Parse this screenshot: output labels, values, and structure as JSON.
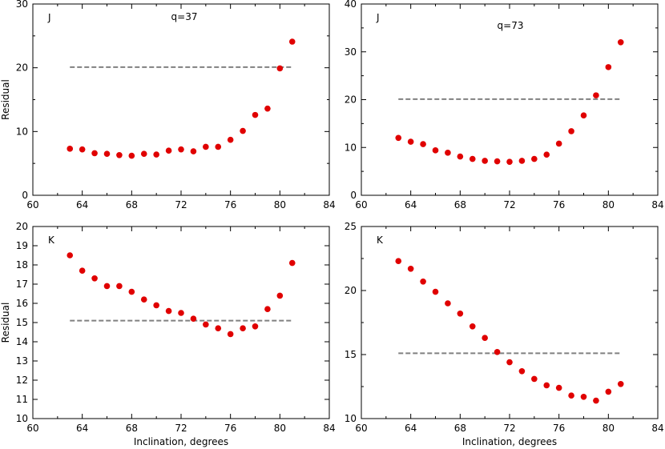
{
  "chart_data": [
    {
      "type": "scatter",
      "panel_label": "J",
      "annotation": "q=37",
      "xlabel": "",
      "ylabel": "Residual",
      "xlim": [
        60,
        84
      ],
      "ylim": [
        0,
        30
      ],
      "xticks": [
        60,
        64,
        68,
        72,
        76,
        80,
        84
      ],
      "yticks": [
        0,
        10,
        20,
        30
      ],
      "threshold": 20.1,
      "threshold_x": [
        63,
        81
      ],
      "point_color": "#e00000",
      "threshold_color": "#808080",
      "points": {
        "x": [
          63,
          64,
          65,
          66,
          67,
          68,
          69,
          70,
          71,
          72,
          73,
          74,
          75,
          76,
          77,
          78,
          79,
          80,
          81
        ],
        "y": [
          7.3,
          7.2,
          6.6,
          6.5,
          6.3,
          6.2,
          6.5,
          6.4,
          7.0,
          7.2,
          6.9,
          7.6,
          7.6,
          8.7,
          10.1,
          12.6,
          13.6,
          19.9,
          24.1
        ]
      }
    },
    {
      "type": "scatter",
      "panel_label": "J",
      "annotation": "q=73",
      "xlabel": "",
      "ylabel": "",
      "xlim": [
        60,
        84
      ],
      "ylim": [
        0,
        40
      ],
      "xticks": [
        60,
        64,
        68,
        72,
        76,
        80,
        84
      ],
      "yticks": [
        0,
        10,
        20,
        30,
        40
      ],
      "threshold": 20.1,
      "threshold_x": [
        63,
        81
      ],
      "point_color": "#e00000",
      "threshold_color": "#808080",
      "points": {
        "x": [
          63,
          64,
          65,
          66,
          67,
          68,
          69,
          70,
          71,
          72,
          73,
          74,
          75,
          76,
          77,
          78,
          79,
          80,
          81
        ],
        "y": [
          12.0,
          11.2,
          10.7,
          9.4,
          8.9,
          8.1,
          7.6,
          7.2,
          7.1,
          7.0,
          7.2,
          7.6,
          8.5,
          10.8,
          13.4,
          16.7,
          20.9,
          26.8,
          32.0
        ]
      }
    },
    {
      "type": "scatter",
      "panel_label": "K",
      "annotation": "",
      "xlabel": "Inclination, degrees",
      "ylabel": "Residual",
      "xlim": [
        60,
        84
      ],
      "ylim": [
        10,
        20
      ],
      "xticks": [
        60,
        64,
        68,
        72,
        76,
        80,
        84
      ],
      "yticks": [
        10,
        11,
        12,
        13,
        14,
        15,
        16,
        17,
        18,
        19,
        20
      ],
      "threshold": 15.1,
      "threshold_x": [
        63,
        81
      ],
      "point_color": "#e00000",
      "threshold_color": "#808080",
      "points": {
        "x": [
          63,
          64,
          65,
          66,
          67,
          68,
          69,
          70,
          71,
          72,
          73,
          74,
          75,
          76,
          77,
          78,
          79,
          80,
          81
        ],
        "y": [
          18.5,
          17.7,
          17.3,
          16.9,
          16.9,
          16.6,
          16.2,
          15.9,
          15.6,
          15.5,
          15.2,
          14.9,
          14.7,
          14.4,
          14.7,
          14.8,
          15.7,
          16.4,
          18.1
        ]
      }
    },
    {
      "type": "scatter",
      "panel_label": "K",
      "annotation": "",
      "xlabel": "Inclination, degrees",
      "ylabel": "",
      "xlim": [
        60,
        84
      ],
      "ylim": [
        10,
        25
      ],
      "xticks": [
        60,
        64,
        68,
        72,
        76,
        80,
        84
      ],
      "yticks": [
        10,
        15,
        20,
        25
      ],
      "threshold": 15.1,
      "threshold_x": [
        63,
        81
      ],
      "point_color": "#e00000",
      "threshold_color": "#808080",
      "points": {
        "x": [
          63,
          64,
          65,
          66,
          67,
          68,
          69,
          70,
          71,
          72,
          73,
          74,
          75,
          76,
          77,
          78,
          79,
          80,
          81
        ],
        "y": [
          22.3,
          21.7,
          20.7,
          19.9,
          19.0,
          18.2,
          17.2,
          16.3,
          15.2,
          14.4,
          13.7,
          13.1,
          12.6,
          12.4,
          11.8,
          11.7,
          11.4,
          12.1,
          12.7
        ]
      }
    }
  ]
}
